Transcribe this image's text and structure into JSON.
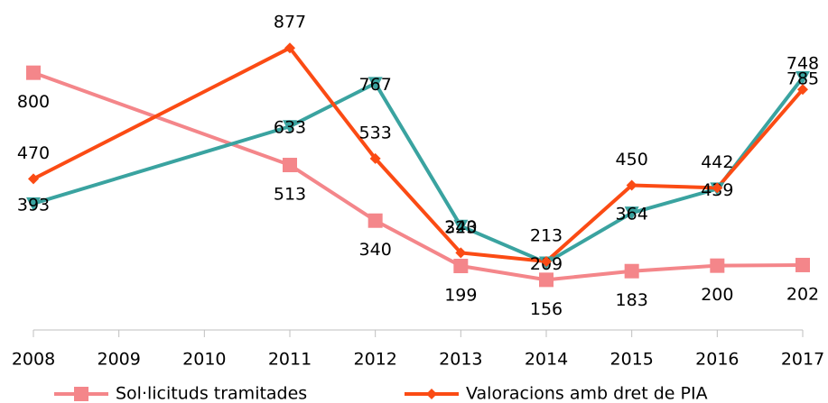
{
  "chart_data": {
    "type": "line",
    "x": [
      2008,
      2011,
      2012,
      2013,
      2014,
      2015,
      2016,
      2017
    ],
    "xlim": [
      2008,
      2017
    ],
    "xticks": [
      2008,
      2009,
      2010,
      2011,
      2012,
      2013,
      2014,
      2015,
      2016,
      2017
    ],
    "ylim": [
      0,
      900
    ],
    "grid": false,
    "legend": "bottom",
    "series": [
      {
        "name": "Sol·licituds tramitades",
        "color": "#f4868a",
        "marker": "square",
        "label_position": "below",
        "values": [
          800,
          513,
          340,
          199,
          156,
          183,
          200,
          202
        ]
      },
      {
        "color": "#3aa3a0",
        "marker": "triangle-down",
        "label_position": "center",
        "values": [
          393,
          633,
          767,
          323,
          209,
          364,
          439,
          785
        ]
      },
      {
        "name": "Valoracions amb dret de PIA",
        "color": "#fb4b14",
        "marker": "diamond",
        "label_position": "above",
        "values": [
          470,
          877,
          533,
          240,
          213,
          450,
          442,
          748
        ]
      }
    ]
  }
}
